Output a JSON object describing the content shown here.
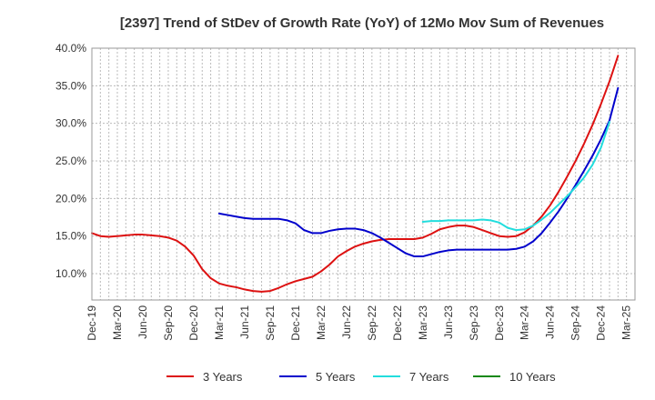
{
  "chart_data": {
    "type": "line",
    "title": "[2397]  Trend of StDev of Growth Rate (YoY) of 12Mo Mov Sum of Revenues",
    "xlabel": "",
    "ylabel": "",
    "ylim": [
      6.5,
      40.0
    ],
    "y_ticks": [
      10.0,
      15.0,
      20.0,
      25.0,
      30.0,
      35.0,
      40.0
    ],
    "y_tick_labels": [
      "10.0%",
      "15.0%",
      "20.0%",
      "25.0%",
      "30.0%",
      "35.0%",
      "40.0%"
    ],
    "x_tick_labels": [
      "Dec-19",
      "Mar-20",
      "Jun-20",
      "Sep-20",
      "Dec-20",
      "Mar-21",
      "Jun-21",
      "Sep-21",
      "Dec-21",
      "Mar-22",
      "Jun-22",
      "Sep-22",
      "Dec-22",
      "Mar-23",
      "Jun-23",
      "Sep-23",
      "Dec-23",
      "Mar-24",
      "Jun-24",
      "Sep-24",
      "Dec-24",
      "Mar-25"
    ],
    "x_start": "Dec-19",
    "n_months": 64,
    "grid": true,
    "legend_position": "bottom",
    "series": [
      {
        "name": "3 Years",
        "color": "#dd1111",
        "start_month_index": 0,
        "values": [
          15.4,
          15.0,
          14.9,
          15.0,
          15.1,
          15.2,
          15.2,
          15.1,
          15.0,
          14.8,
          14.4,
          13.6,
          12.4,
          10.6,
          9.4,
          8.7,
          8.4,
          8.2,
          7.9,
          7.7,
          7.6,
          7.7,
          8.1,
          8.6,
          9.0,
          9.3,
          9.6,
          10.3,
          11.2,
          12.3,
          13.0,
          13.6,
          14.0,
          14.3,
          14.5,
          14.6,
          14.6,
          14.6,
          14.6,
          14.8,
          15.3,
          15.9,
          16.2,
          16.4,
          16.4,
          16.2,
          15.8,
          15.4,
          15.0,
          14.9,
          15.0,
          15.5,
          16.4,
          17.6,
          19.1,
          20.9,
          22.9,
          25.0,
          27.3,
          29.8,
          32.6,
          35.6,
          39.0
        ]
      },
      {
        "name": "5 Years",
        "color": "#0000cc",
        "start_month_index": 15,
        "values": [
          18.0,
          17.8,
          17.6,
          17.4,
          17.3,
          17.3,
          17.3,
          17.3,
          17.1,
          16.7,
          15.8,
          15.4,
          15.4,
          15.7,
          15.9,
          16.0,
          16.0,
          15.8,
          15.4,
          14.8,
          14.1,
          13.4,
          12.7,
          12.3,
          12.3,
          12.6,
          12.9,
          13.1,
          13.2,
          13.2,
          13.2,
          13.2,
          13.2,
          13.2,
          13.2,
          13.3,
          13.6,
          14.3,
          15.4,
          16.8,
          18.3,
          20.0,
          21.8,
          23.7,
          25.7,
          27.9,
          30.4,
          34.7
        ]
      },
      {
        "name": "7 Years",
        "color": "#22dddd",
        "start_month_index": 39,
        "values": [
          16.9,
          17.0,
          17.0,
          17.1,
          17.1,
          17.1,
          17.1,
          17.2,
          17.1,
          16.8,
          16.1,
          15.8,
          15.9,
          16.4,
          17.2,
          18.1,
          19.2,
          20.3,
          21.5,
          22.8,
          24.5,
          26.8,
          30.2
        ]
      },
      {
        "name": "10 Years",
        "color": "#118811",
        "start_month_index": 0,
        "values": []
      }
    ]
  }
}
